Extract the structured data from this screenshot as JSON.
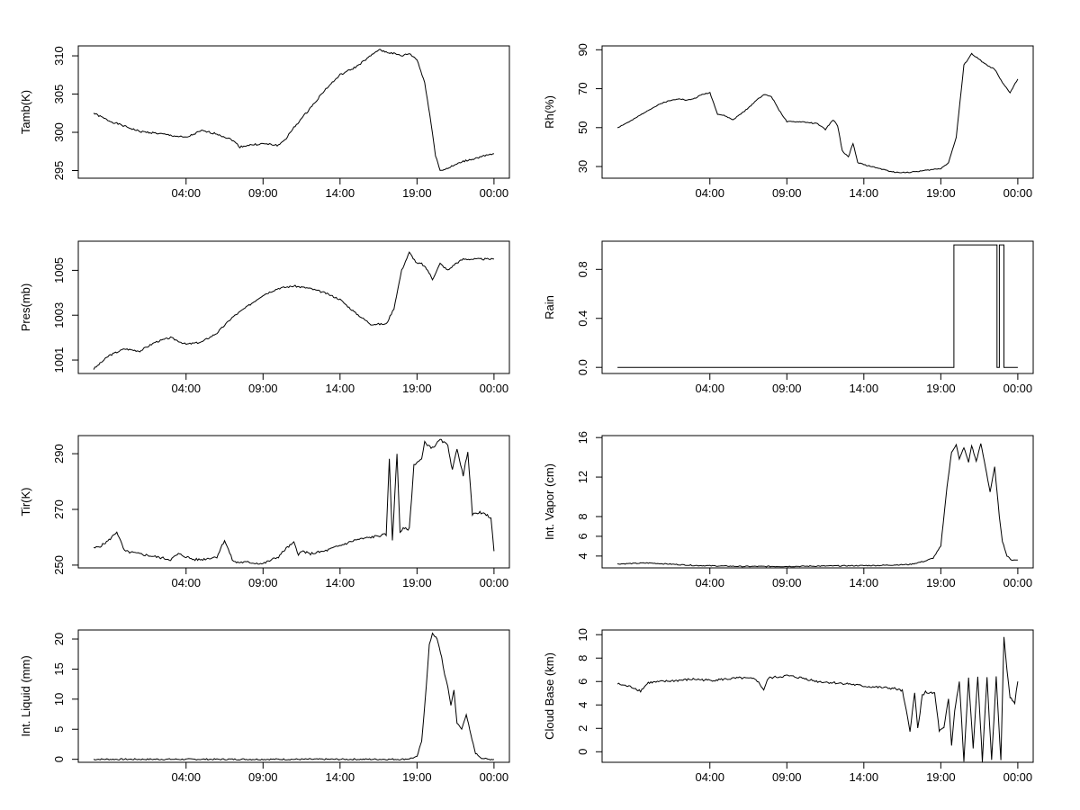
{
  "x_ticks": [
    "04:00",
    "09:00",
    "14:00",
    "19:00",
    "00:00"
  ],
  "chart_data": [
    {
      "type": "line",
      "ylabel": "Tamb(K)",
      "yticks": [
        295,
        300,
        305,
        310
      ],
      "ylim": [
        294,
        311.3
      ],
      "x": [
        -2,
        -1,
        0,
        1,
        2,
        3,
        4,
        5,
        6,
        7,
        7.5,
        8,
        9,
        10,
        10.5,
        11,
        12,
        13,
        14,
        15,
        16,
        16.5,
        17,
        17.5,
        18,
        18.5,
        19,
        19.5,
        20,
        20.2,
        20.5,
        21,
        22,
        23,
        24
      ],
      "y": [
        302.5,
        301.5,
        300.8,
        300.1,
        299.9,
        299.6,
        299.3,
        300.2,
        299.8,
        299,
        298.1,
        298.3,
        298.5,
        298.3,
        299.2,
        300.6,
        303,
        305.5,
        307.5,
        308.5,
        310,
        310.8,
        310.5,
        310.3,
        310,
        310.3,
        309.5,
        306.5,
        300,
        297,
        295,
        295.3,
        296.2,
        296.7,
        297.2
      ],
      "noise": 0.12
    },
    {
      "type": "line",
      "ylabel": "Rh(%)",
      "yticks": [
        30,
        50,
        70,
        90
      ],
      "ylim": [
        24,
        92
      ],
      "x": [
        -2,
        -1,
        0,
        1,
        2,
        2.5,
        3,
        3.5,
        4,
        4.5,
        5,
        5.5,
        6,
        6.5,
        7,
        7.5,
        8,
        8.5,
        9,
        10,
        11,
        11.5,
        12,
        12.3,
        12.6,
        13,
        13.3,
        13.6,
        14,
        15,
        16,
        17,
        18,
        19,
        19.5,
        20,
        20.5,
        21,
        21.5,
        22,
        22.5,
        23,
        23.5,
        24
      ],
      "y": [
        50,
        54,
        59,
        63,
        65,
        64,
        65,
        67,
        68,
        57,
        56,
        54,
        57,
        60,
        64,
        67,
        66,
        59,
        53,
        53,
        52,
        49,
        54,
        51,
        38,
        35,
        42,
        32,
        31,
        29,
        27,
        27,
        28,
        29,
        32,
        45,
        82,
        88,
        85,
        82,
        80,
        73,
        68,
        75
      ],
      "noise": 0.25
    },
    {
      "type": "line",
      "ylabel": "Pres(mb)",
      "yticks": [
        1001,
        1003,
        1005
      ],
      "ylim": [
        1000.4,
        1006.3
      ],
      "x": [
        -2,
        -1,
        0,
        1,
        2,
        3,
        4,
        5,
        6,
        7,
        8,
        9,
        10,
        11,
        12,
        13,
        14,
        15,
        16,
        17,
        17.5,
        18,
        18.5,
        19,
        19.3,
        19.7,
        20,
        20.5,
        21,
        21.5,
        22,
        22.5,
        23,
        23.5,
        24
      ],
      "y": [
        1000.6,
        1001.2,
        1001.5,
        1001.4,
        1001.8,
        1002,
        1001.7,
        1001.8,
        1002.2,
        1002.9,
        1003.4,
        1003.9,
        1004.2,
        1004.3,
        1004.2,
        1004,
        1003.7,
        1003.1,
        1002.6,
        1002.6,
        1003.3,
        1005,
        1005.8,
        1005.3,
        1005.3,
        1005,
        1004.6,
        1005.3,
        1005,
        1005.3,
        1005.5,
        1005.5,
        1005.5,
        1005.5,
        1005.5
      ],
      "noise": 0.04
    },
    {
      "type": "step",
      "ylabel": "Rain",
      "yticks": [
        "0.0",
        "0.4",
        "0.8"
      ],
      "ytick_values": [
        0,
        0.4,
        0.8
      ],
      "ylim": [
        -0.05,
        1.03
      ],
      "x": [
        -2,
        19.85,
        19.85,
        22.65,
        22.65,
        22.8,
        22.8,
        23.1,
        23.1,
        24
      ],
      "y": [
        0,
        0,
        1,
        1,
        0,
        0,
        1,
        1,
        0,
        0
      ],
      "noise": 0
    },
    {
      "type": "line",
      "ylabel": "Tir(K)",
      "yticks": [
        250,
        270,
        290
      ],
      "ylim": [
        249,
        296.5
      ],
      "x": [
        -2,
        -1.5,
        -1,
        -0.5,
        0,
        1,
        2,
        3,
        3.5,
        4,
        4.5,
        5,
        6,
        6.5,
        7,
        7.2,
        7.5,
        8,
        9,
        10,
        10.5,
        11,
        11.3,
        11.6,
        12,
        13,
        14,
        15,
        16,
        17,
        17.2,
        17.4,
        17.7,
        17.9,
        18.1,
        18.5,
        18.8,
        19,
        19.3,
        19.5,
        20,
        20.5,
        21,
        21.3,
        21.6,
        22,
        22.3,
        22.6,
        23,
        23.5,
        23.8,
        24
      ],
      "y": [
        256,
        257,
        259,
        262,
        255,
        254,
        253,
        252,
        254,
        253,
        252,
        252,
        253,
        259,
        252,
        251,
        251,
        251,
        250.5,
        253,
        256,
        258,
        254,
        255,
        254,
        255,
        257,
        259,
        260,
        261,
        288,
        259,
        290,
        262,
        263,
        263,
        286,
        287,
        288,
        294,
        292,
        295,
        293,
        284,
        292,
        282,
        291,
        268,
        269,
        268,
        267,
        255
      ],
      "noise": 0.45
    },
    {
      "type": "line",
      "ylabel": "Int. Vapor (cm)",
      "yticks": [
        4,
        6,
        8,
        12,
        16
      ],
      "ylim": [
        2.8,
        16.2
      ],
      "x": [
        -2,
        0,
        3,
        6,
        9,
        12,
        15,
        17,
        18,
        18.5,
        19,
        19.4,
        19.7,
        20,
        20.2,
        20.5,
        20.8,
        21,
        21.3,
        21.6,
        21.9,
        22.2,
        22.5,
        22.8,
        23,
        23.3,
        23.6,
        24
      ],
      "y": [
        3.2,
        3.3,
        3.05,
        2.95,
        2.95,
        3.0,
        3.05,
        3.15,
        3.5,
        3.8,
        5,
        11,
        14.5,
        15.3,
        13.8,
        15,
        13.5,
        15.2,
        13.6,
        15.4,
        13,
        10.5,
        13,
        8,
        5.5,
        4,
        3.6,
        3.6
      ],
      "noise": 0.05
    },
    {
      "type": "line",
      "ylabel": "Int. Liquid (mm)",
      "yticks": [
        0,
        5,
        10,
        15,
        20
      ],
      "ylim": [
        -0.5,
        21.5
      ],
      "x": [
        -2,
        0,
        5,
        10,
        15,
        18,
        18.5,
        19,
        19.3,
        19.6,
        19.8,
        20,
        20.3,
        20.6,
        20.8,
        21,
        21.2,
        21.4,
        21.6,
        21.9,
        22.2,
        22.5,
        22.8,
        23.2,
        23.6,
        24
      ],
      "y": [
        0,
        0,
        0,
        0,
        0,
        0,
        0.1,
        0.4,
        3,
        12,
        19,
        21,
        20,
        17,
        14,
        12,
        9,
        11.5,
        6,
        5,
        7.5,
        4,
        1,
        0.2,
        0,
        0
      ],
      "noise": 0.12
    },
    {
      "type": "line",
      "ylabel": "Cloud Base (km)",
      "yticks": [
        0,
        2,
        4,
        6,
        8,
        10
      ],
      "ylim": [
        -0.9,
        10.4
      ],
      "x": [
        -2,
        -1,
        -0.5,
        0,
        1,
        2,
        3,
        4,
        5,
        6,
        7,
        7.5,
        7.8,
        8.5,
        9,
        10,
        11,
        12,
        13,
        14,
        15,
        16,
        16.5,
        17,
        17.3,
        17.5,
        17.8,
        18,
        18.3,
        18.6,
        18.9,
        19.2,
        19.5,
        19.7,
        19.9,
        20.2,
        20.5,
        20.8,
        21.1,
        21.4,
        21.7,
        22,
        22.3,
        22.6,
        22.9,
        23.1,
        23.3,
        23.5,
        23.8,
        24
      ],
      "y": [
        5.8,
        5.5,
        5.2,
        5.9,
        6.0,
        6.1,
        6.2,
        6.1,
        6.2,
        6.3,
        6.2,
        5.3,
        6.3,
        6.4,
        6.5,
        6.3,
        6.0,
        5.9,
        5.8,
        5.6,
        5.5,
        5.4,
        5.2,
        1.8,
        5.0,
        2.0,
        4.8,
        5.1,
        5.0,
        5.0,
        1.8,
        2.0,
        4.5,
        0.5,
        3.5,
        6.0,
        -0.8,
        6.3,
        0.3,
        6.4,
        -0.8,
        6.4,
        -0.8,
        6.4,
        -0.8,
        9.8,
        7.0,
        4.7,
        4.2,
        6.0
      ],
      "noise": 0.1
    }
  ]
}
